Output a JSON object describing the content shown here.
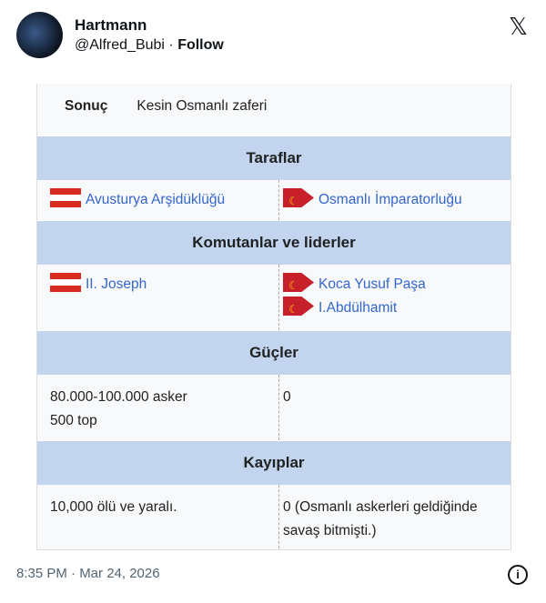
{
  "tweet": {
    "name": "Hartmann",
    "handle": "@Alfred_Bubi",
    "separator": " · ",
    "follow": "Follow",
    "timestamp": "8:35 PM · Mar 24, 2026",
    "x_logo": "𝕏",
    "info_icon": "i"
  },
  "infobox": {
    "result_label": "Sonuç",
    "result_value": "Kesin Osmanlı zaferi",
    "sides_header": "Taraflar",
    "side_left": "Avusturya Arşidüklüğü",
    "side_right": "Osmanlı İmparatorluğu",
    "commanders_header": "Komutanlar ve liderler",
    "commander_left": "II. Joseph",
    "commanders_right": [
      "Koca Yusuf Paşa",
      "I.Abdülhamit"
    ],
    "strength_header": "Güçler",
    "strength_left": [
      "80.000-100.000 asker",
      "500 top"
    ],
    "strength_right": "0",
    "casualties_header": "Kayıplar",
    "casualties_left": "10,000 ölü ve yaralı.",
    "casualties_right": "0 (Osmanlı askerleri geldiğinde savaş bitmişti.)"
  },
  "colors": {
    "header_bg": "#c3d5ee",
    "link": "#3366cc"
  }
}
